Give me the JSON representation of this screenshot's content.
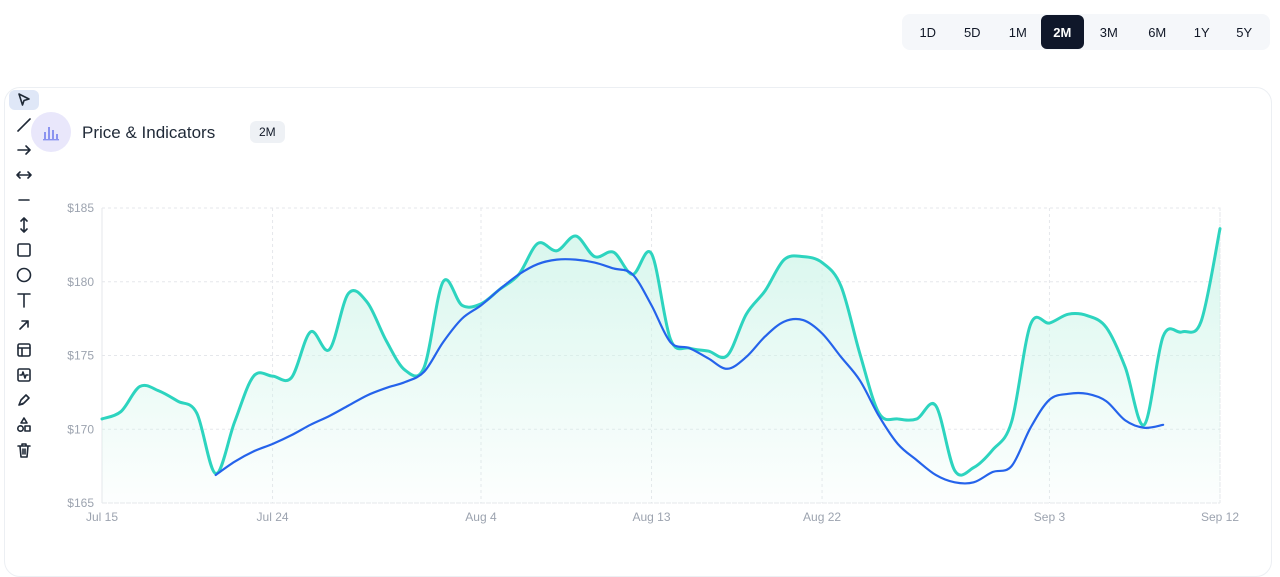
{
  "range_selector": {
    "options": [
      "1D",
      "5D",
      "1M",
      "2M",
      "3M",
      "6M",
      "1Y",
      "5Y"
    ],
    "selected": "2M"
  },
  "panel": {
    "title": "Price & Indicators",
    "badge": "2M",
    "icon": "bar-chart-icon"
  },
  "toolbar": {
    "tools": [
      "cursor-icon",
      "trend-line-icon",
      "arrow-icon",
      "double-arrow-icon",
      "horizontal-line-icon",
      "vertical-arrow-icon",
      "rectangle-icon",
      "circle-icon",
      "text-icon",
      "arrow-up-right-icon",
      "layout-icon",
      "pulse-icon",
      "pen-icon",
      "shapes-icon",
      "trash-icon"
    ],
    "active": "cursor-icon"
  },
  "colors": {
    "price_line": "#2dd4bf",
    "ma_line": "#2563eb",
    "area_fill": "#d1f5ea",
    "active_button": "#0f172a"
  },
  "chart_data": {
    "type": "line",
    "title": "",
    "xlabel": "",
    "ylabel": "",
    "x_tick_labels": [
      "Jul 15",
      "Jul 24",
      "Aug 4",
      "Aug 13",
      "Aug 22",
      "Sep 3",
      "Sep 12"
    ],
    "y_tick_labels": [
      "$165",
      "$170",
      "$175",
      "$180",
      "$185"
    ],
    "ylim": [
      165,
      185
    ],
    "grid": true,
    "legend": "none",
    "series": [
      {
        "role": "price",
        "color": "#2dd4bf",
        "fill_area": true,
        "points": [
          [
            "Jul 15",
            170.7
          ],
          [
            "Jul 16",
            171.2
          ],
          [
            "Jul 17",
            172.9
          ],
          [
            "Jul 18",
            172.6
          ],
          [
            "Jul 19",
            171.9
          ],
          [
            "Jul 20",
            171.1
          ],
          [
            "Jul 21",
            167.0
          ],
          [
            "Jul 22",
            170.5
          ],
          [
            "Jul 23",
            173.6
          ],
          [
            "Jul 24",
            173.6
          ],
          [
            "Jul 25",
            173.5
          ],
          [
            "Jul 26",
            176.6
          ],
          [
            "Jul 27",
            175.4
          ],
          [
            "Jul 28",
            179.2
          ],
          [
            "Jul 29",
            178.6
          ],
          [
            "Jul 30",
            176.0
          ],
          [
            "Jul 31",
            174.0
          ],
          [
            "Aug 1",
            174.2
          ],
          [
            "Aug 2",
            180.0
          ],
          [
            "Aug 3",
            178.4
          ],
          [
            "Aug 4",
            178.5
          ],
          [
            "Aug 5",
            179.5
          ],
          [
            "Aug 6",
            180.5
          ],
          [
            "Aug 7",
            182.6
          ],
          [
            "Aug 8",
            182.1
          ],
          [
            "Aug 9",
            183.1
          ],
          [
            "Aug 10",
            181.7
          ],
          [
            "Aug 11",
            182.0
          ],
          [
            "Aug 12",
            180.5
          ],
          [
            "Aug 13",
            181.9
          ],
          [
            "Aug 14",
            176.1
          ],
          [
            "Aug 15",
            175.5
          ],
          [
            "Aug 16",
            175.3
          ],
          [
            "Aug 17",
            175.0
          ],
          [
            "Aug 18",
            177.8
          ],
          [
            "Aug 19",
            179.4
          ],
          [
            "Aug 20",
            181.5
          ],
          [
            "Aug 21",
            181.7
          ],
          [
            "Aug 22",
            181.3
          ],
          [
            "Aug 23",
            179.7
          ],
          [
            "Aug 24",
            175.1
          ],
          [
            "Aug 25",
            171.1
          ],
          [
            "Aug 26",
            170.7
          ],
          [
            "Aug 27",
            170.7
          ],
          [
            "Aug 28",
            171.6
          ],
          [
            "Aug 29",
            167.2
          ],
          [
            "Aug 30",
            167.4
          ],
          [
            "Aug 31",
            168.6
          ],
          [
            "Sep 1",
            170.5
          ],
          [
            "Sep 2",
            177.1
          ],
          [
            "Sep 3",
            177.2
          ],
          [
            "Sep 4",
            177.8
          ],
          [
            "Sep 5",
            177.7
          ],
          [
            "Sep 6",
            176.9
          ],
          [
            "Sep 7",
            174.2
          ],
          [
            "Sep 8",
            170.3
          ],
          [
            "Sep 9",
            176.3
          ],
          [
            "Sep 10",
            176.6
          ],
          [
            "Sep 11",
            177.3
          ],
          [
            "Sep 12",
            183.6
          ]
        ]
      },
      {
        "role": "moving-average",
        "color": "#2563eb",
        "fill_area": false,
        "points": [
          [
            "Jul 21",
            166.9
          ],
          [
            "Jul 22",
            167.8
          ],
          [
            "Jul 23",
            168.5
          ],
          [
            "Jul 24",
            169.0
          ],
          [
            "Jul 25",
            169.6
          ],
          [
            "Jul 26",
            170.3
          ],
          [
            "Jul 27",
            170.9
          ],
          [
            "Jul 28",
            171.6
          ],
          [
            "Jul 29",
            172.3
          ],
          [
            "Jul 30",
            172.8
          ],
          [
            "Jul 31",
            173.2
          ],
          [
            "Aug 1",
            173.9
          ],
          [
            "Aug 2",
            175.9
          ],
          [
            "Aug 3",
            177.5
          ],
          [
            "Aug 4",
            178.4
          ],
          [
            "Aug 5",
            179.5
          ],
          [
            "Aug 6",
            180.5
          ],
          [
            "Aug 7",
            181.2
          ],
          [
            "Aug 8",
            181.5
          ],
          [
            "Aug 9",
            181.5
          ],
          [
            "Aug 10",
            181.3
          ],
          [
            "Aug 11",
            180.9
          ],
          [
            "Aug 12",
            180.5
          ],
          [
            "Aug 13",
            178.4
          ],
          [
            "Aug 14",
            175.9
          ],
          [
            "Aug 15",
            175.5
          ],
          [
            "Aug 16",
            174.8
          ],
          [
            "Aug 17",
            174.1
          ],
          [
            "Aug 18",
            174.9
          ],
          [
            "Aug 19",
            176.3
          ],
          [
            "Aug 20",
            177.3
          ],
          [
            "Aug 21",
            177.4
          ],
          [
            "Aug 22",
            176.5
          ],
          [
            "Aug 23",
            174.9
          ],
          [
            "Aug 24",
            173.3
          ],
          [
            "Aug 25",
            170.9
          ],
          [
            "Aug 26",
            169.0
          ],
          [
            "Aug 27",
            167.9
          ],
          [
            "Aug 28",
            166.9
          ],
          [
            "Aug 29",
            166.4
          ],
          [
            "Aug 30",
            166.4
          ],
          [
            "Aug 31",
            167.1
          ],
          [
            "Sep 1",
            167.5
          ],
          [
            "Sep 2",
            170.1
          ],
          [
            "Sep 3",
            172.0
          ],
          [
            "Sep 4",
            172.4
          ],
          [
            "Sep 5",
            172.4
          ],
          [
            "Sep 6",
            171.9
          ],
          [
            "Sep 7",
            170.6
          ],
          [
            "Sep 8",
            170.1
          ],
          [
            "Sep 9",
            170.3
          ]
        ]
      }
    ]
  }
}
